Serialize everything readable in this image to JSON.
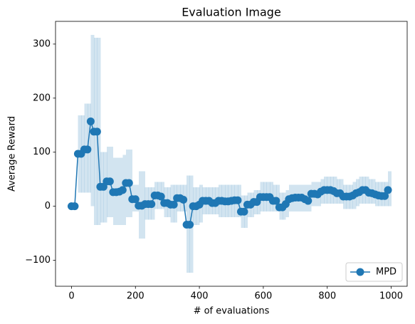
{
  "chart_data": {
    "type": "line",
    "title": "Evaluation Image",
    "x_label": "# of evaluations",
    "y_label": "Average Reward",
    "x": [
      0,
      10,
      20,
      30,
      40,
      50,
      60,
      70,
      80,
      90,
      100,
      110,
      120,
      130,
      140,
      150,
      160,
      170,
      180,
      190,
      200,
      210,
      220,
      230,
      240,
      250,
      260,
      270,
      280,
      290,
      300,
      310,
      320,
      330,
      340,
      350,
      360,
      370,
      380,
      390,
      400,
      410,
      420,
      430,
      440,
      450,
      460,
      470,
      480,
      490,
      500,
      510,
      520,
      530,
      540,
      550,
      560,
      570,
      580,
      590,
      600,
      610,
      620,
      630,
      640,
      650,
      660,
      670,
      680,
      690,
      700,
      710,
      720,
      730,
      740,
      750,
      760,
      770,
      780,
      790,
      800,
      810,
      820,
      830,
      840,
      850,
      860,
      870,
      880,
      890,
      900,
      910,
      920,
      930,
      940,
      950,
      960,
      970,
      980,
      990
    ],
    "series": [
      {
        "name": "MPD",
        "color": "#1f77b4",
        "band_color": "#1f77b4",
        "values": [
          0,
          0,
          97,
          97,
          105,
          105,
          157,
          138,
          138,
          36,
          36,
          46,
          46,
          26,
          26,
          27,
          30,
          43,
          43,
          13,
          13,
          1,
          1,
          4,
          4,
          4,
          20,
          20,
          18,
          6,
          6,
          3,
          3,
          15,
          15,
          12,
          -34,
          -34,
          0,
          0,
          3,
          10,
          10,
          10,
          6,
          6,
          10,
          10,
          9,
          9,
          10,
          11,
          11,
          -10,
          -10,
          3,
          3,
          8,
          8,
          17,
          17,
          17,
          17,
          10,
          10,
          -2,
          -2,
          4,
          13,
          15,
          16,
          16,
          16,
          13,
          10,
          23,
          23,
          22,
          27,
          30,
          30,
          30,
          28,
          24,
          24,
          18,
          18,
          18,
          20,
          24,
          26,
          30,
          30,
          25,
          24,
          22,
          20,
          19,
          19,
          30
        ],
        "lower": [
          0,
          0,
          25,
          25,
          25,
          25,
          0,
          -35,
          -35,
          -30,
          -30,
          -20,
          -20,
          -35,
          -35,
          -35,
          -35,
          -20,
          -20,
          -10,
          -10,
          -60,
          -60,
          -25,
          -25,
          -25,
          -5,
          -5,
          -5,
          -20,
          -20,
          -30,
          -30,
          -10,
          -10,
          -10,
          -123,
          -123,
          -35,
          -35,
          -30,
          -15,
          -15,
          -15,
          -15,
          -15,
          -20,
          -20,
          -20,
          -20,
          -20,
          -20,
          -20,
          -40,
          -40,
          -20,
          -20,
          -15,
          -15,
          -10,
          -10,
          -10,
          -10,
          -10,
          -10,
          -25,
          -25,
          -20,
          -10,
          -10,
          -10,
          -10,
          -10,
          -10,
          -10,
          0,
          0,
          0,
          5,
          5,
          5,
          5,
          5,
          5,
          5,
          -5,
          -5,
          -5,
          -5,
          0,
          5,
          5,
          5,
          5,
          5,
          0,
          0,
          0,
          0,
          0
        ],
        "upper": [
          0,
          0,
          168,
          168,
          190,
          190,
          317,
          312,
          312,
          100,
          100,
          110,
          110,
          90,
          90,
          90,
          95,
          105,
          105,
          40,
          40,
          65,
          65,
          35,
          35,
          35,
          45,
          45,
          45,
          35,
          35,
          40,
          40,
          40,
          40,
          40,
          57,
          57,
          35,
          35,
          40,
          35,
          35,
          35,
          35,
          35,
          40,
          40,
          40,
          40,
          40,
          40,
          40,
          20,
          20,
          25,
          25,
          30,
          30,
          45,
          45,
          45,
          45,
          40,
          40,
          25,
          25,
          30,
          40,
          40,
          40,
          40,
          40,
          40,
          40,
          45,
          45,
          45,
          50,
          55,
          55,
          55,
          55,
          50,
          50,
          40,
          40,
          40,
          45,
          50,
          55,
          55,
          55,
          50,
          50,
          45,
          45,
          45,
          45,
          65
        ]
      }
    ],
    "xlim": [
      -50,
      1050
    ],
    "ylim": [
      -148,
      342
    ],
    "xticks": [
      0,
      200,
      400,
      600,
      800,
      1000
    ],
    "yticks": [
      {
        "value": -100,
        "label": "−100"
      },
      0,
      100,
      200,
      300
    ],
    "legend": "lower right"
  }
}
